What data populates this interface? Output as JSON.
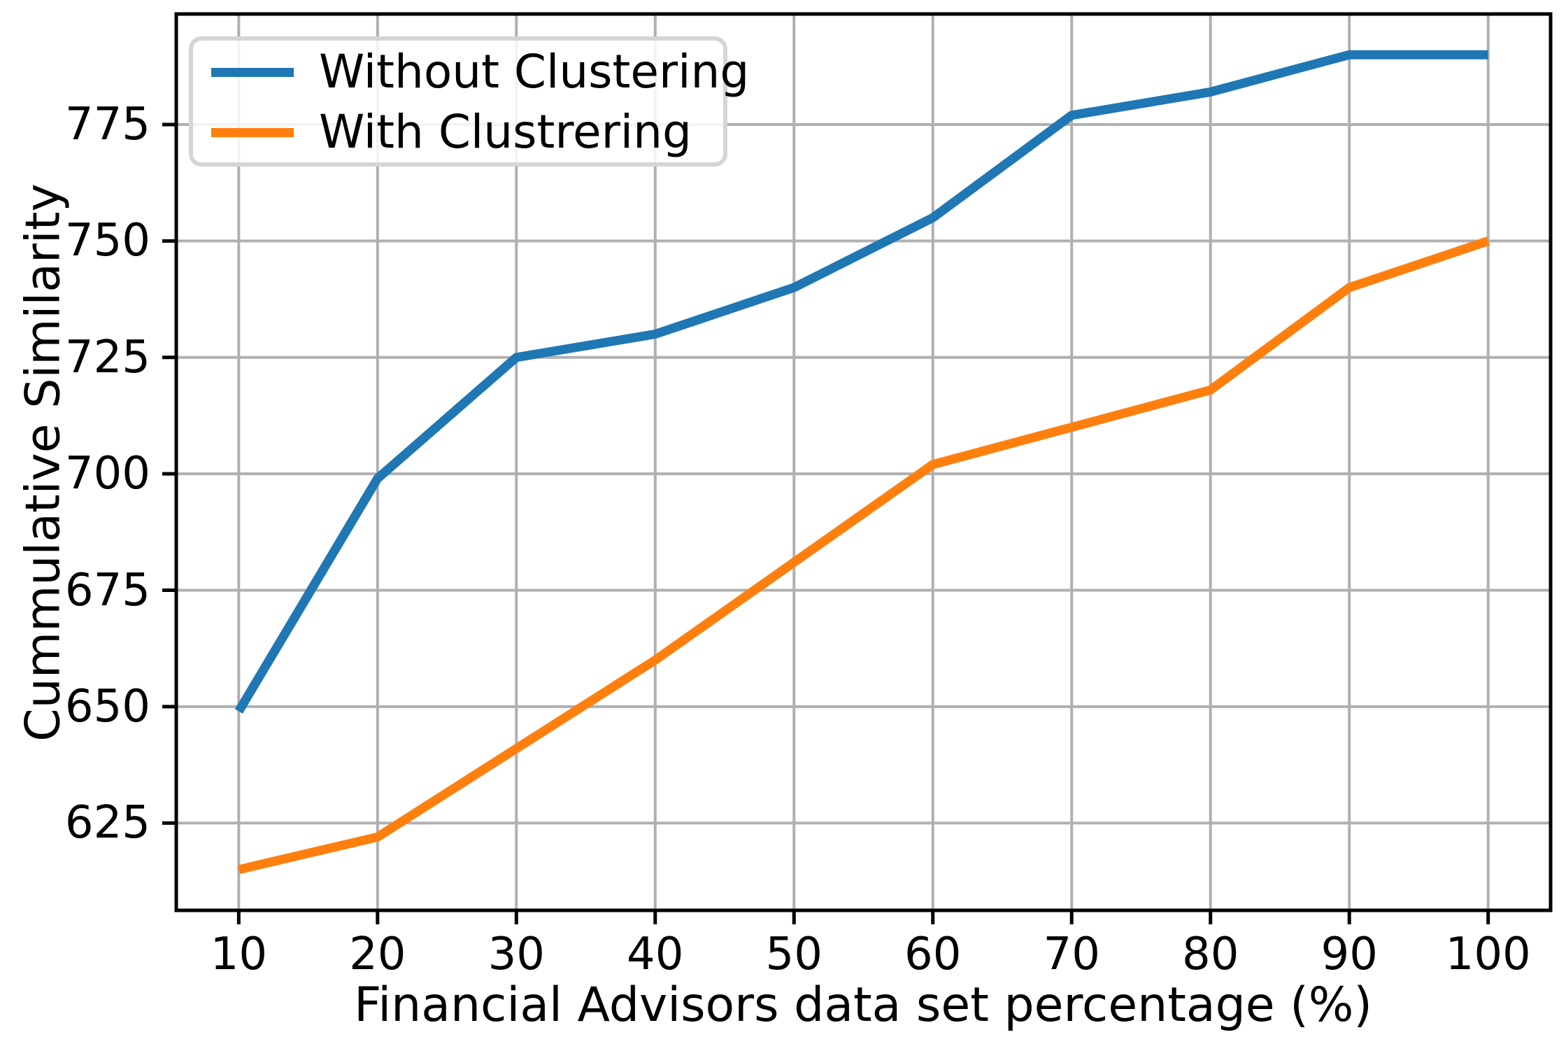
{
  "figure": {
    "background": "#ffffff",
    "axis_color": "#000000",
    "grid_color": "#b0b0b0",
    "legend_border_color": "#d5d5d5"
  },
  "chart_data": {
    "type": "line",
    "title": "",
    "xlabel": "Financial Advisors data set percentage (%)",
    "ylabel": "Cummulative Similarity",
    "x": [
      10,
      20,
      30,
      40,
      50,
      60,
      70,
      80,
      90,
      100
    ],
    "series": [
      {
        "name": "Without Clustering",
        "color": "#1f77b4",
        "values": [
          649,
          699,
          725,
          730,
          740,
          755,
          777,
          782,
          790,
          790
        ]
      },
      {
        "name": "With Clustrering",
        "color": "#ff7f0e",
        "values": [
          615,
          622,
          641,
          660,
          681,
          702,
          710,
          718,
          740,
          750
        ]
      }
    ],
    "x_ticks": [
      10,
      20,
      30,
      40,
      50,
      60,
      70,
      80,
      90,
      100
    ],
    "y_ticks": [
      625,
      650,
      675,
      700,
      725,
      750,
      775
    ],
    "xlim": [
      5.5,
      104.5
    ],
    "ylim": [
      606.25,
      798.75
    ],
    "grid": true,
    "legend_position": "upper left"
  }
}
